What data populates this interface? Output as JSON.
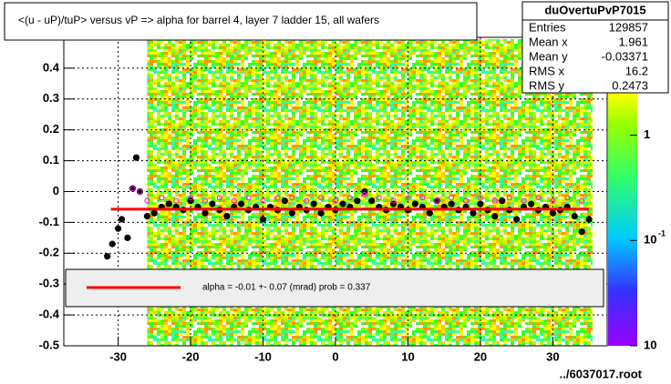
{
  "chart_data": {
    "type": "scatter",
    "title": "<(u - uP)/tuP> versus  vP => alpha for barrel 4, layer 7 ladder 15, all wafers",
    "stats": {
      "title": "duOvertuPvP7015",
      "rows": [
        [
          "Entries",
          "129857"
        ],
        [
          "Mean x",
          "1.961"
        ],
        [
          "Mean y",
          "-0.03371"
        ],
        [
          "RMS x",
          "16.2"
        ],
        [
          "RMS y",
          "0.2473"
        ]
      ]
    },
    "fit_text": "alpha =   -0.01 +-  0.07 (mrad) prob = 0.337",
    "footer": "../6037017.root",
    "xlim": [
      -37.5,
      37.5
    ],
    "ylim": [
      -0.5,
      0.5
    ],
    "xticks": [
      -30,
      -20,
      -10,
      0,
      10,
      20,
      30
    ],
    "yticks": [
      -0.5,
      -0.4,
      -0.3,
      -0.2,
      -0.1,
      0,
      0.1,
      0.2,
      0.3,
      0.4
    ],
    "grid": true,
    "zlim": [
      0.01,
      8.5
    ],
    "zlog": true,
    "zticks": [
      {
        "value": 1,
        "label": "1"
      },
      {
        "value": 0.1,
        "base": "10",
        "exp": "-1"
      },
      {
        "value": 0.01,
        "base": "10"
      }
    ],
    "series": [
      {
        "color": "#000000",
        "x": [
          -31.5,
          -30.8,
          -30,
          -29.5,
          -28.7,
          -28,
          -27.5,
          -27,
          -26,
          -25,
          -24,
          -23,
          -22,
          -21,
          -20,
          -19,
          -18,
          -17,
          -16,
          -15,
          -14,
          -13,
          -12,
          -11,
          -10,
          -9,
          -8,
          -7,
          -6,
          -5,
          -4,
          -3,
          -2,
          -1,
          0,
          1,
          2,
          3,
          4,
          5,
          6,
          7,
          8,
          9,
          10,
          11,
          12,
          13,
          14,
          15,
          16,
          17,
          18,
          19,
          20,
          21,
          22,
          23,
          24,
          25,
          26,
          27,
          28,
          29,
          30,
          31,
          32,
          33,
          34,
          35
        ],
        "values": [
          -0.21,
          -0.17,
          -0.12,
          -0.09,
          -0.15,
          0.01,
          0.11,
          0.0,
          -0.08,
          -0.07,
          -0.05,
          -0.04,
          -0.05,
          -0.06,
          -0.03,
          -0.05,
          -0.07,
          -0.04,
          -0.06,
          -0.08,
          -0.05,
          -0.04,
          -0.06,
          -0.05,
          -0.09,
          -0.05,
          -0.06,
          -0.03,
          -0.07,
          -0.05,
          -0.06,
          -0.04,
          -0.07,
          -0.05,
          -0.06,
          -0.04,
          -0.05,
          -0.03,
          0.0,
          -0.03,
          -0.05,
          -0.06,
          -0.04,
          -0.05,
          -0.06,
          -0.04,
          -0.05,
          -0.07,
          -0.03,
          -0.05,
          -0.04,
          -0.06,
          -0.05,
          -0.07,
          -0.04,
          -0.06,
          -0.08,
          -0.03,
          -0.06,
          -0.09,
          -0.05,
          -0.04,
          -0.06,
          -0.05,
          -0.07,
          -0.06,
          -0.05,
          -0.08,
          -0.13,
          -0.09
        ]
      },
      {
        "color": "#ff00ff",
        "x": [
          -28,
          -27,
          -26,
          -24,
          -22,
          -20,
          -18,
          -16,
          -14,
          -12,
          -10,
          -8,
          -6,
          -4,
          -2,
          0,
          2,
          4,
          6,
          8,
          10,
          12,
          14,
          16,
          18,
          20,
          22,
          24,
          26,
          28,
          30,
          32,
          34
        ],
        "values": [
          0.01,
          0.0,
          -0.03,
          -0.02,
          -0.03,
          -0.02,
          -0.03,
          -0.02,
          -0.03,
          -0.02,
          -0.03,
          -0.02,
          -0.02,
          -0.03,
          -0.02,
          -0.03,
          -0.02,
          -0.01,
          -0.02,
          -0.03,
          -0.02,
          -0.02,
          -0.03,
          -0.02,
          -0.03,
          -0.02,
          -0.03,
          -0.02,
          -0.03,
          -0.02,
          -0.03,
          -0.02,
          -0.03
        ]
      }
    ],
    "fit": {
      "color": "#ff0000",
      "x": [
        -31,
        35
      ],
      "values": [
        -0.057,
        -0.057
      ]
    }
  }
}
